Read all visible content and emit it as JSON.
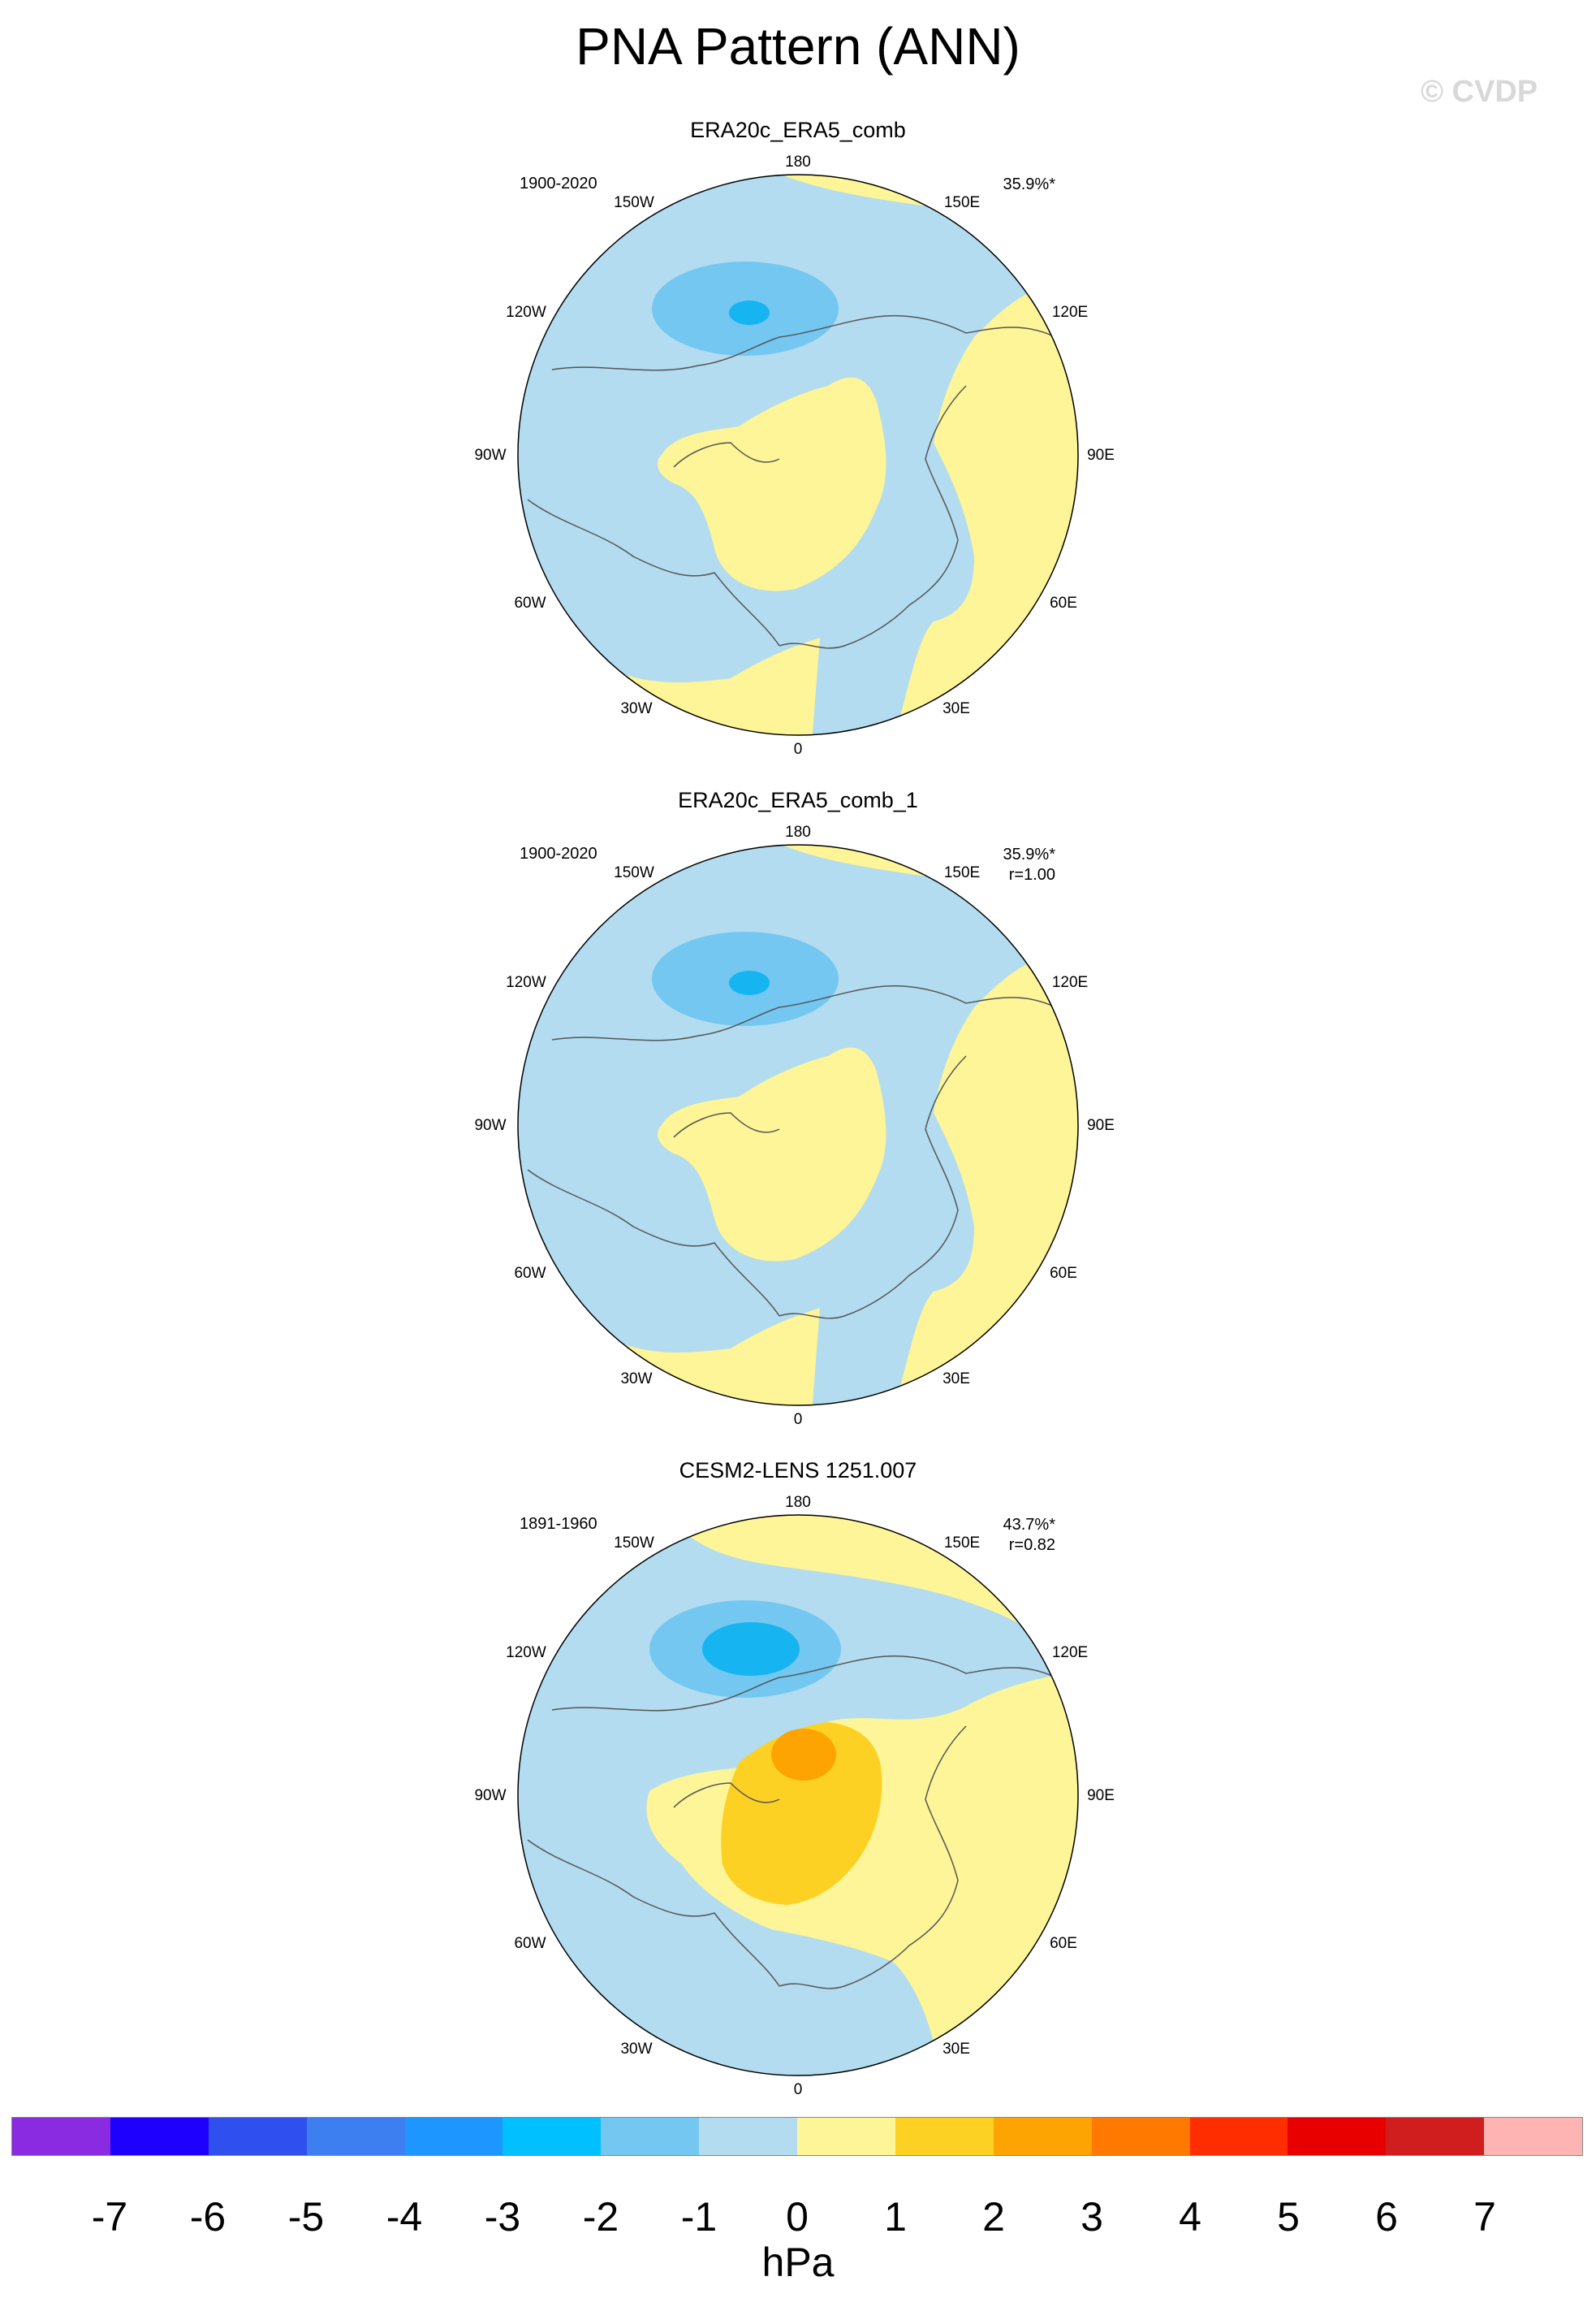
{
  "title": "PNA Pattern (ANN)",
  "watermark": "© CVDP",
  "colors": {
    "ocean_neg1": "#b3dcf0",
    "neg2": "#74c7f0",
    "neg3": "#17b4f2",
    "pos1": "#fdf597",
    "pos2": "#fdd024",
    "pos3": "#fda402",
    "coast": "#555555"
  },
  "longitude_labels": [
    "180",
    "150E",
    "120E",
    "90E",
    "60E",
    "30E",
    "0",
    "30W",
    "60W",
    "90W",
    "120W",
    "150W"
  ],
  "panels": [
    {
      "title": "ERA20c_ERA5_comb",
      "period": "1900-2020",
      "pct": "35.9%*",
      "r": ""
    },
    {
      "title": "ERA20c_ERA5_comb_1",
      "period": "1900-2020",
      "pct": "35.9%*",
      "r": "r=1.00"
    },
    {
      "title": "CESM2-LENS 1251.007",
      "period": "1891-1960",
      "pct": "43.7%*",
      "r": "r=0.82"
    }
  ],
  "colorbar": {
    "colors": [
      "#8a2be2",
      "#1e00ff",
      "#2f50ee",
      "#3d7ff0",
      "#1e96ff",
      "#00c0ff",
      "#74c7f0",
      "#b3dcf0",
      "#fdf597",
      "#fdd024",
      "#fda402",
      "#ff7800",
      "#ff2d00",
      "#e80000",
      "#d01d1d",
      "#ffb4b4"
    ],
    "labels": [
      "-7",
      "-6",
      "-5",
      "-4",
      "-3",
      "-2",
      "-1",
      "0",
      "1",
      "2",
      "3",
      "4",
      "5",
      "6",
      "7"
    ],
    "unit": "hPa"
  }
}
